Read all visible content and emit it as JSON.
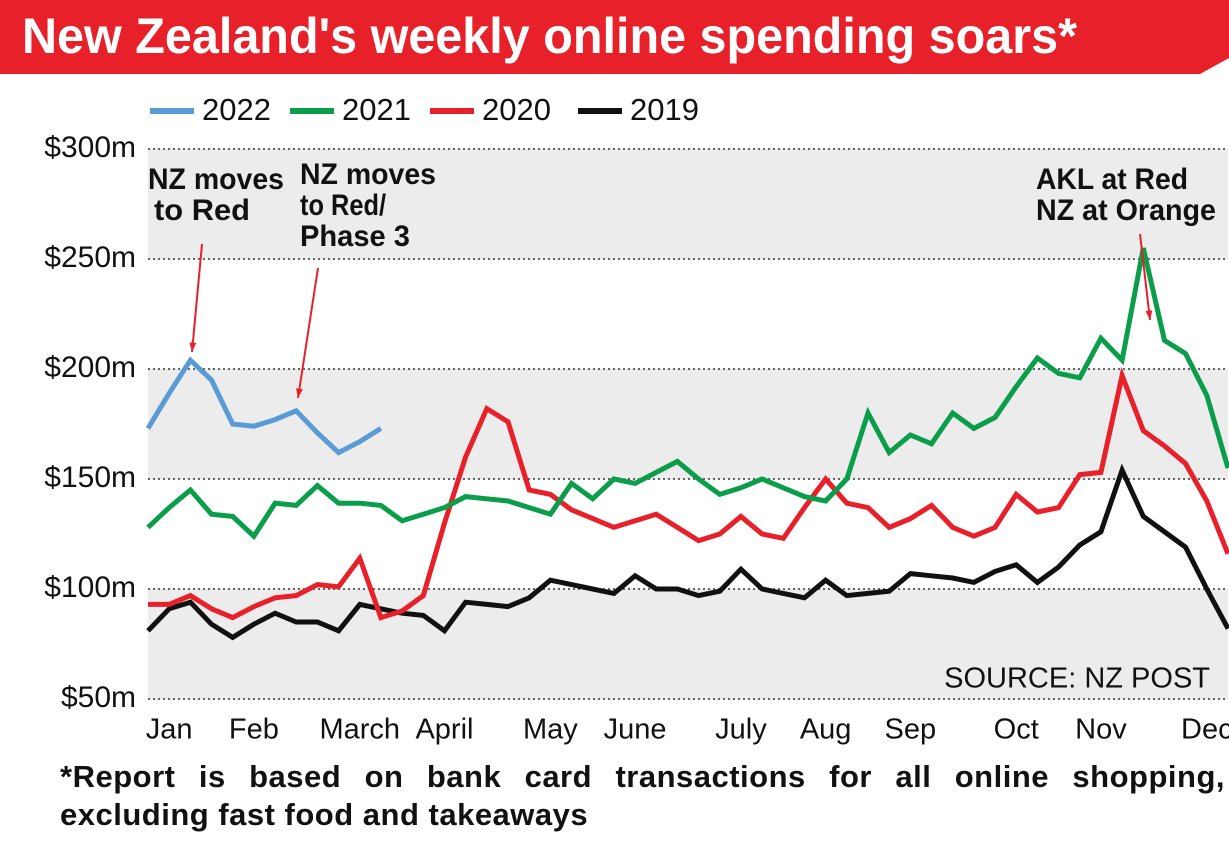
{
  "chart_data": {
    "type": "line",
    "title": "New Zealand's weekly online spending soars*",
    "categories": [
      null,
      "Jan",
      null,
      null,
      null,
      "Feb",
      null,
      null,
      null,
      null,
      "March",
      null,
      null,
      null,
      "April",
      null,
      null,
      null,
      null,
      "May",
      null,
      null,
      null,
      "June",
      null,
      null,
      null,
      null,
      "July",
      null,
      null,
      null,
      "Aug",
      null,
      null,
      null,
      "Sep",
      null,
      null,
      null,
      null,
      "Oct",
      null,
      null,
      null,
      "Nov",
      null,
      null,
      null,
      null,
      "Dec",
      null
    ],
    "series": [
      {
        "name": "2022",
        "color": "#5b9bd5",
        "values": [
          173,
          189,
          204,
          195,
          175,
          174,
          177,
          181,
          171,
          162,
          167,
          173,
          null,
          null,
          null,
          null,
          null,
          null,
          null,
          null,
          null,
          null,
          null,
          null,
          null,
          null,
          null,
          null,
          null,
          null,
          null,
          null,
          null,
          null,
          null,
          null,
          null,
          null,
          null,
          null,
          null,
          null,
          null,
          null,
          null,
          null,
          null,
          null,
          null,
          null,
          null,
          null
        ]
      },
      {
        "name": "2021",
        "color": "#0a9e4a",
        "values": [
          128,
          137,
          145,
          134,
          133,
          124,
          139,
          138,
          147,
          139,
          139,
          138,
          131,
          134,
          137,
          142,
          141,
          140,
          137,
          134,
          148,
          141,
          150,
          148,
          153,
          158,
          150,
          143,
          146,
          150,
          146,
          142,
          140,
          150,
          180,
          162,
          170,
          166,
          180,
          173,
          178,
          192,
          205,
          198,
          196,
          214,
          204,
          255,
          213,
          207,
          188,
          155
        ]
      },
      {
        "name": "2020",
        "color": "#e8202a",
        "values": [
          93,
          93,
          97,
          91,
          87,
          92,
          96,
          97,
          102,
          101,
          114,
          87,
          90,
          97,
          130,
          160,
          182,
          176,
          145,
          143,
          136,
          132,
          128,
          131,
          134,
          128,
          122,
          125,
          133,
          125,
          123,
          137,
          150,
          139,
          137,
          128,
          132,
          138,
          128,
          124,
          128,
          143,
          135,
          137,
          152,
          153,
          197,
          172,
          165,
          157,
          140,
          116
        ]
      },
      {
        "name": "2019",
        "color": "#111111",
        "values": [
          81,
          91,
          94,
          84,
          78,
          84,
          89,
          85,
          85,
          81,
          93,
          91,
          89,
          88,
          81,
          94,
          93,
          92,
          96,
          104,
          102,
          100,
          98,
          106,
          100,
          100,
          97,
          99,
          109,
          100,
          98,
          96,
          104,
          97,
          98,
          99,
          107,
          106,
          105,
          103,
          108,
          111,
          103,
          110,
          120,
          126,
          154,
          133,
          126,
          119,
          100,
          82
        ]
      }
    ],
    "ylim": [
      50,
      300
    ],
    "yticks": [
      {
        "value": 50,
        "label": "$50m"
      },
      {
        "value": 100,
        "label": "$100m"
      },
      {
        "value": 150,
        "label": "$150m"
      },
      {
        "value": 200,
        "label": "$200m"
      },
      {
        "value": 250,
        "label": "$250m"
      },
      {
        "value": 300,
        "label": "$300m"
      }
    ],
    "grid": true,
    "banded": true,
    "legend": "top",
    "annotations": [
      {
        "lines": [
          "NZ moves",
          "to Red"
        ]
      },
      {
        "lines": [
          "NZ moves",
          "to Red/",
          "Phase 3"
        ]
      },
      {
        "lines": [
          "AKL at Red",
          "NZ at Orange"
        ]
      }
    ],
    "source": "SOURCE: NZ POST",
    "footnote": "*Report is based on bank card transactions for all online shopping, excluding fast food and takeaways"
  }
}
